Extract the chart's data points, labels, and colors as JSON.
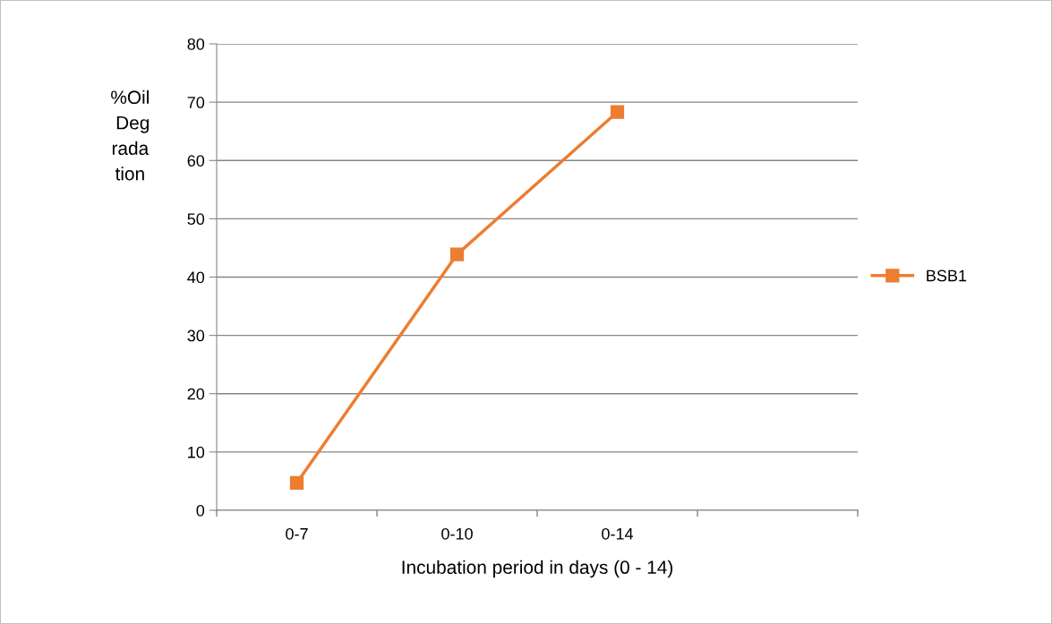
{
  "chart_data": {
    "type": "line",
    "xlabel": "Incubation period in days (0 - 14)",
    "ylabel": "%Oil Degradation",
    "categories": [
      "0-7",
      "0-10",
      "0-14",
      null
    ],
    "series": [
      {
        "name": "BSB1",
        "color": "#ed7d31",
        "values": [
          4.7,
          43.9,
          68.3,
          null
        ]
      }
    ],
    "ylim": [
      0,
      80
    ],
    "yticks": [
      0,
      10,
      20,
      30,
      40,
      50,
      60,
      70,
      80
    ],
    "grid": "y",
    "legend": "right",
    "marker": "square",
    "line_style": "solid"
  }
}
